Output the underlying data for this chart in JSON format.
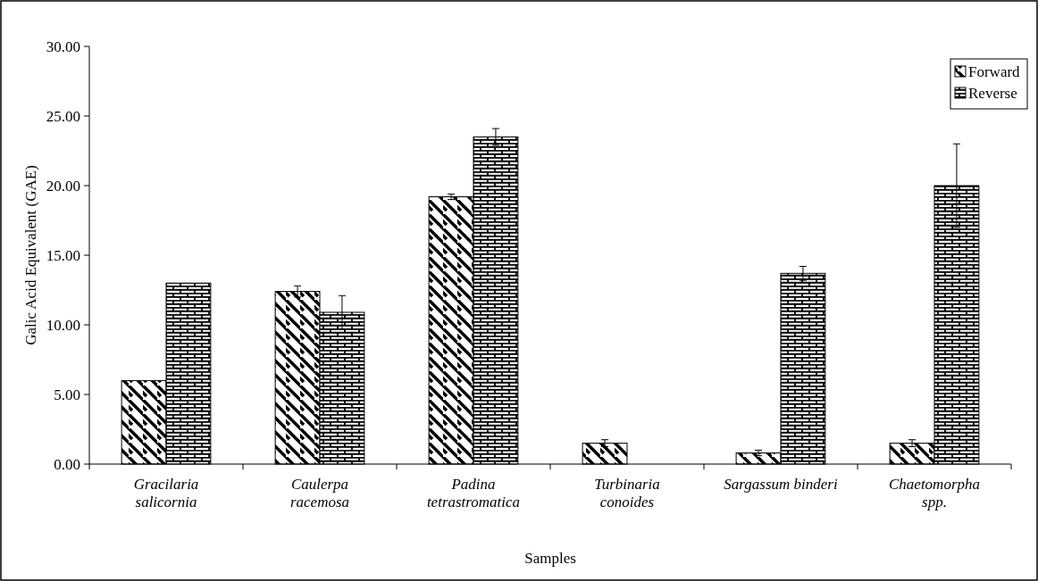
{
  "chart_data": {
    "type": "bar",
    "xlabel": "Samples",
    "ylabel": "Galic Acid Equivalent (GAE)",
    "categories": [
      "Gracilaria\nsalicornia",
      "Caulerpa\nracemosa",
      "Padina\ntetrastromatica",
      "Turbinaria\nconoides",
      "Sargassum binderi",
      "Chaetomorpha\nspp."
    ],
    "series": [
      {
        "name": "Forward",
        "color": "#000000",
        "values": [
          6.0,
          12.4,
          19.2,
          1.5,
          0.8,
          1.5
        ],
        "errors": [
          null,
          0.4,
          0.2,
          0.25,
          0.2,
          0.25
        ]
      },
      {
        "name": "Reverse",
        "color": "#000000",
        "values": [
          13.0,
          10.9,
          23.5,
          0,
          13.7,
          20.0
        ],
        "errors": [
          null,
          1.2,
          0.6,
          null,
          0.5,
          3.0
        ]
      }
    ],
    "ylim": [
      0,
      30
    ],
    "yticks": [
      {
        "value": 0,
        "label": "0.00"
      },
      {
        "value": 5,
        "label": "5.00"
      },
      {
        "value": 10,
        "label": "10.00"
      },
      {
        "value": 15,
        "label": "15.00"
      },
      {
        "value": 20,
        "label": "20.00"
      },
      {
        "value": 25,
        "label": "25.00"
      },
      {
        "value": 30,
        "label": "30.00"
      }
    ],
    "legend": "top right",
    "grid": false
  }
}
